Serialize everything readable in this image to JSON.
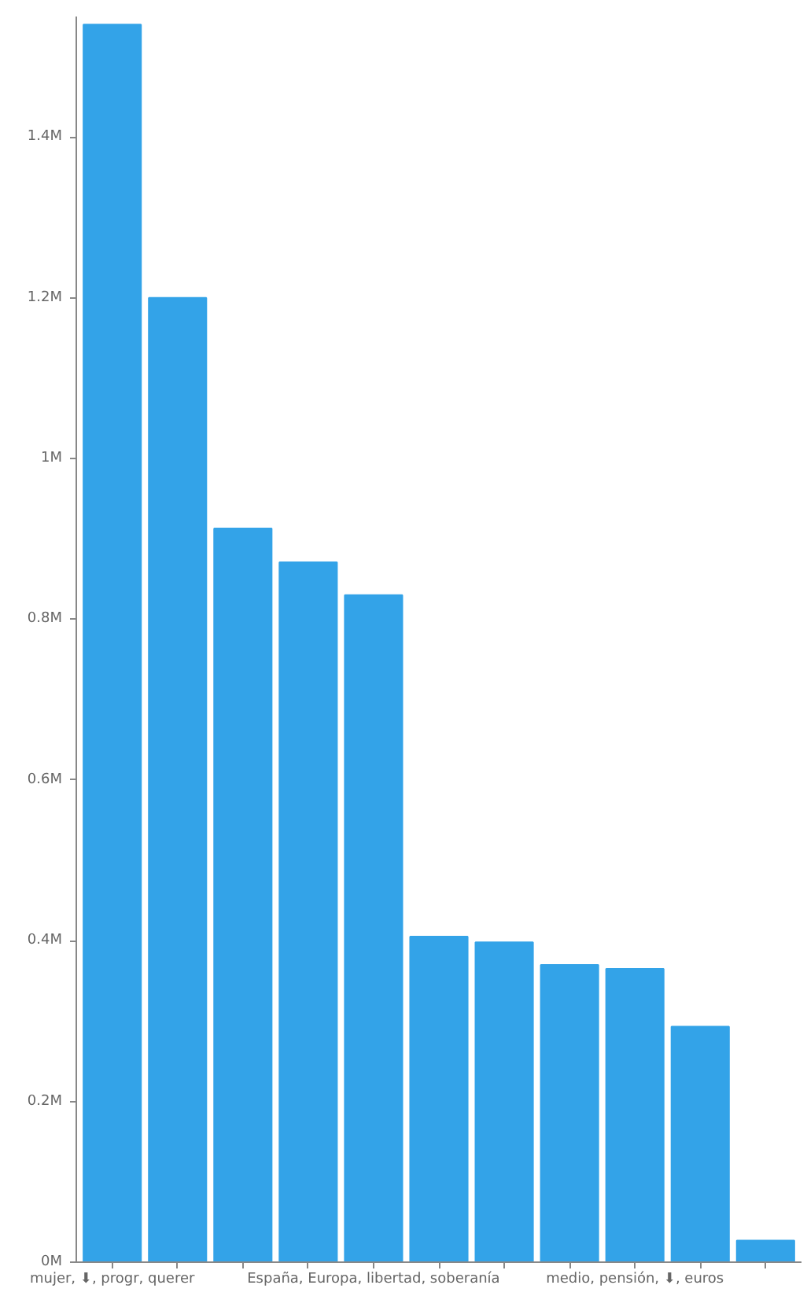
{
  "chart_data": {
    "type": "bar",
    "categories": [
      "mujer, ⬇, progr, querer",
      null,
      null,
      null,
      "España, Europa, libertad, soberanía",
      null,
      null,
      null,
      "medio, pensión, ⬇, euros",
      null,
      null
    ],
    "values": [
      1.54,
      1.2,
      0.913,
      0.871,
      0.83,
      0.405,
      0.398,
      0.37,
      0.365,
      0.293,
      0.027
    ],
    "color": "#33a3e8",
    "ylim": [
      0,
      1.55
    ],
    "yticks": [
      {
        "value": 0,
        "label": "0M"
      },
      {
        "value": 0.2,
        "label": "0.2M"
      },
      {
        "value": 0.4,
        "label": "0.4M"
      },
      {
        "value": 0.6,
        "label": "0.6M"
      },
      {
        "value": 0.8,
        "label": "0.8M"
      },
      {
        "value": 1,
        "label": "1M"
      },
      {
        "value": 1.2,
        "label": "1.2M"
      },
      {
        "value": 1.4,
        "label": "1.4M"
      }
    ],
    "grid": false
  }
}
